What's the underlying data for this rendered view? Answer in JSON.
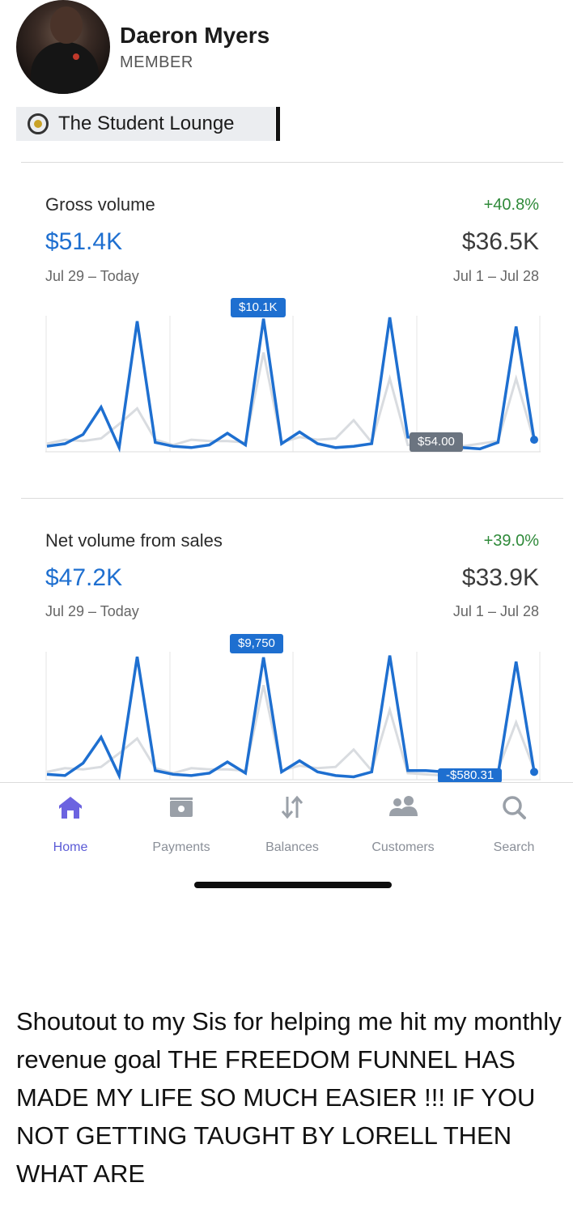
{
  "profile": {
    "name": "Daeron Myers",
    "role": "MEMBER"
  },
  "group": {
    "label": "The Student Lounge"
  },
  "gross": {
    "title": "Gross volume",
    "change": "+40.8%",
    "current": "$51.4K",
    "previous": "$36.5K",
    "current_range": "Jul 29 – Today",
    "previous_range": "Jul 1 – Jul 28",
    "tooltip_peak": "$10.1K",
    "tooltip_end": "$54.00"
  },
  "net": {
    "title": "Net volume from sales",
    "change": "+39.0%",
    "current": "$47.2K",
    "previous": "$33.9K",
    "current_range": "Jul 29 – Today",
    "previous_range": "Jul 1 – Jul 28",
    "tooltip_peak": "$9,750",
    "tooltip_end": "-$580.31"
  },
  "tabs": [
    {
      "label": "Home",
      "icon": "home-icon",
      "active": true
    },
    {
      "label": "Payments",
      "icon": "payments-icon",
      "active": false
    },
    {
      "label": "Balances",
      "icon": "balances-icon",
      "active": false
    },
    {
      "label": "Customers",
      "icon": "customers-icon",
      "active": false
    },
    {
      "label": "Search",
      "icon": "search-icon",
      "active": false
    }
  ],
  "caption": "Shoutout to my Sis for helping me hit my monthly revenue goal THE FREEDOM FUNNEL HAS MADE MY LIFE SO MUCH EASIER !!! IF YOU NOT GETTING TAUGHT BY LORELL THEN WHAT ARE",
  "colors": {
    "accent": "#1e6fd0",
    "positive": "#2f8a3a",
    "tab_active": "#5b5bd6",
    "tab_inactive": "#8a8f98"
  },
  "chart_data": [
    {
      "type": "line",
      "series": [
        {
          "values": [
            0.3,
            0.5,
            1.2,
            3.3,
            0.2,
            9.9,
            0.6,
            0.3,
            0.2,
            0.4,
            1.3,
            0.4,
            10.1,
            0.5,
            1.4,
            0.5,
            0.2,
            0.3,
            0.5,
            10.2,
            1.0,
            0.9,
            0.8,
            0.2,
            0.1,
            0.6,
            9.5,
            0.8
          ]
        },
        {
          "values": [
            0.5,
            0.8,
            0.7,
            0.9,
            2.0,
            3.2,
            0.8,
            0.4,
            0.8,
            0.7,
            0.7,
            0.6,
            7.5,
            0.6,
            1.0,
            0.8,
            0.9,
            2.3,
            0.6,
            5.5,
            0.4,
            0.3,
            0.2,
            0.3,
            0.5,
            0.7,
            5.5,
            0.7
          ]
        }
      ]
    },
    {
      "type": "line",
      "series": [
        {
          "values": [
            0.3,
            0.2,
            1.2,
            3.3,
            0.2,
            9.8,
            0.6,
            0.3,
            0.2,
            0.4,
            1.3,
            0.4,
            9.75,
            0.5,
            1.4,
            0.5,
            0.2,
            0.1,
            0.5,
            9.9,
            0.6,
            0.6,
            0.5,
            0.2,
            0.3,
            0.3,
            9.4,
            0.5
          ]
        },
        {
          "values": [
            0.5,
            0.8,
            0.7,
            0.9,
            2.0,
            3.2,
            0.8,
            0.4,
            0.8,
            0.7,
            0.7,
            0.6,
            7.5,
            0.6,
            1.0,
            0.8,
            0.9,
            2.3,
            0.6,
            5.5,
            0.4,
            0.3,
            0.2,
            0.3,
            0.5,
            0.7,
            4.5,
            0.7
          ]
        }
      ]
    }
  ]
}
